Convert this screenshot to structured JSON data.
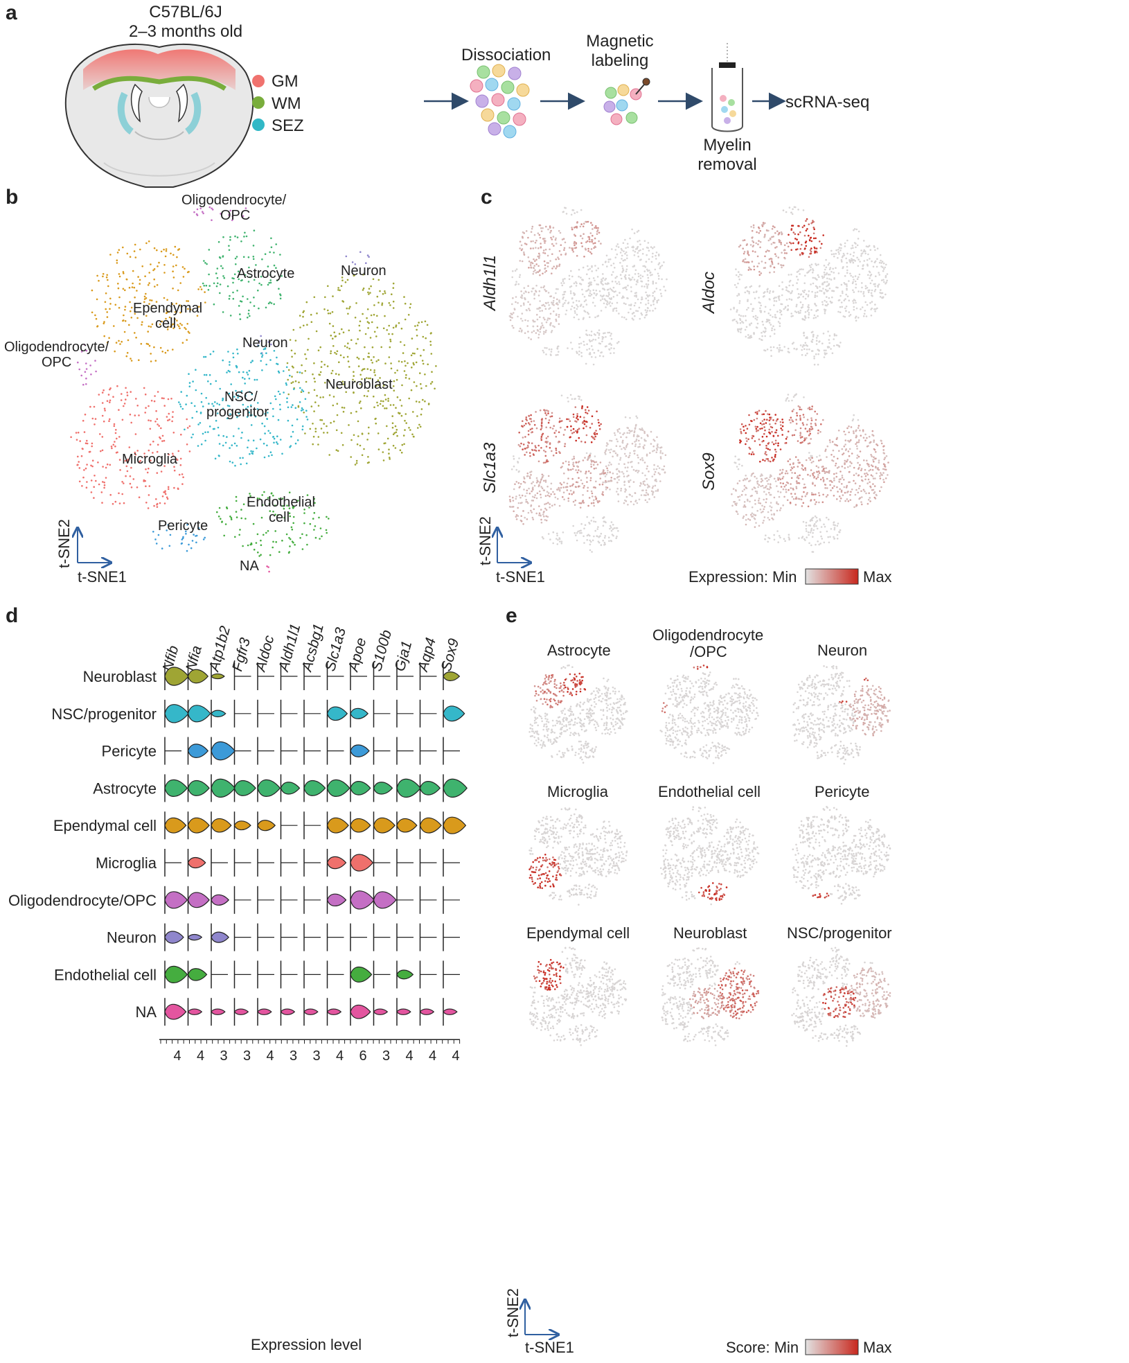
{
  "panel_labels": {
    "a": "a",
    "b": "b",
    "c": "c",
    "d": "d",
    "e": "e"
  },
  "panel_a": {
    "strain": "C57BL/6J",
    "age": "2–3 months old",
    "legend": [
      {
        "label": "GM",
        "color": "#f0726e"
      },
      {
        "label": "WM",
        "color": "#79ad3c"
      },
      {
        "label": "SEZ",
        "color": "#31b8c6"
      }
    ],
    "steps": {
      "dissociation": "Dissociation",
      "magnetic_1": "Magnetic",
      "magnetic_2": "labeling",
      "myelin_1": "Myelin",
      "myelin_2": "removal",
      "scrnaseq": "scRNA-seq"
    }
  },
  "panel_b": {
    "clusters": [
      {
        "label": "Oligodendrocyte/",
        "label2": "OPC",
        "color": "#c46fc4"
      },
      {
        "label": "Astrocyte",
        "color": "#3fb36e"
      },
      {
        "label": "Neuron",
        "color": "#8f86cc"
      },
      {
        "label": "Ependymal",
        "label2": "cell",
        "color": "#d99a1c"
      },
      {
        "label": "Oligodendrocyte/",
        "label2": "OPC",
        "color": "#c46fc4"
      },
      {
        "label": "Neuron",
        "color": "#8f86cc"
      },
      {
        "label": "Neuroblast",
        "color": "#9fa534"
      },
      {
        "label": "NSC/",
        "label2": "progenitor",
        "color": "#35b7c9"
      },
      {
        "label": "Microglia",
        "color": "#ef706c"
      },
      {
        "label": "Endothelial",
        "label2": "cell",
        "color": "#45ad3f"
      },
      {
        "label": "Pericyte",
        "color": "#3c9ad8"
      },
      {
        "label": "NA",
        "color": "#e3559f"
      }
    ],
    "axis_y": "t-SNE2",
    "axis_x": "t-SNE1"
  },
  "panel_c": {
    "genes": [
      "Aldh1l1",
      "Aldoc",
      "Slc1a3",
      "Sox9"
    ],
    "axis_y": "t-SNE2",
    "axis_x": "t-SNE1",
    "legend_prefix": "Expression: Min",
    "legend_max": "Max",
    "colors": {
      "min": "#d8d8d8",
      "max": "#c8281e"
    }
  },
  "panel_d": {
    "genes": [
      "Nfib",
      "Nfia",
      "Atp1b2",
      "Fgfr3",
      "Aldoc",
      "Aldh1l1",
      "Acsbg1",
      "Slc1a3",
      "Apoe",
      "S100b",
      "Gja1",
      "Aqp4",
      "Sox9"
    ],
    "cell_types": [
      {
        "name": "Neuroblast",
        "color": "#9fa534"
      },
      {
        "name": "NSC/progenitor",
        "color": "#35b7c9"
      },
      {
        "name": "Pericyte",
        "color": "#3c9ad8"
      },
      {
        "name": "Astrocyte",
        "color": "#3fb36e"
      },
      {
        "name": "Ependymal cell",
        "color": "#d99a1c"
      },
      {
        "name": "Microglia",
        "color": "#ef706c"
      },
      {
        "name": "Oligodendrocyte/OPC",
        "color": "#c46fc4"
      },
      {
        "name": "Neuron",
        "color": "#8f86cc"
      },
      {
        "name": "Endothelial cell",
        "color": "#45ad3f"
      },
      {
        "name": "NA",
        "color": "#e3559f"
      }
    ],
    "expression": [
      [
        0.9,
        0.6,
        0.05,
        0,
        0,
        0,
        0,
        0,
        0,
        0,
        0,
        0,
        0.3
      ],
      [
        0.9,
        0.8,
        0.15,
        0,
        0,
        0,
        0,
        0.6,
        0.4,
        0,
        0,
        0,
        0.7
      ],
      [
        0,
        0.6,
        0.9,
        0,
        0,
        0,
        0,
        0,
        0.5,
        0,
        0,
        0,
        0
      ],
      [
        0.8,
        0.7,
        0.9,
        0.7,
        0.8,
        0.5,
        0.7,
        0.8,
        0.6,
        0.5,
        0.9,
        0.6,
        0.9
      ],
      [
        0.7,
        0.7,
        0.6,
        0.3,
        0.4,
        0,
        0,
        0.7,
        0.6,
        0.7,
        0.6,
        0.7,
        0.8
      ],
      [
        0,
        0.4,
        0,
        0,
        0,
        0,
        0,
        0.5,
        0.8,
        0,
        0,
        0,
        0
      ],
      [
        0.8,
        0.7,
        0.4,
        0,
        0,
        0,
        0,
        0.5,
        0.9,
        0.8,
        0,
        0,
        0
      ],
      [
        0.5,
        0.1,
        0.4,
        0,
        0,
        0,
        0,
        0,
        0,
        0,
        0,
        0,
        0
      ],
      [
        0.8,
        0.5,
        0,
        0,
        0,
        0,
        0,
        0,
        0.7,
        0,
        0.3,
        0,
        0
      ],
      [
        0.7,
        0.1,
        0.1,
        0.1,
        0.1,
        0.1,
        0.1,
        0.1,
        0.6,
        0.1,
        0.1,
        0.1,
        0.1
      ]
    ],
    "tick_values": [
      "4",
      "4",
      "3",
      "3",
      "4",
      "3",
      "3",
      "4",
      "6",
      "3",
      "4",
      "4",
      "4"
    ],
    "xlabel": "Expression level"
  },
  "panel_e": {
    "rows": [
      [
        {
          "title": "Astrocyte"
        },
        {
          "title": "Oligodendrocyte",
          "title2": "/OPC"
        },
        {
          "title": "Neuron"
        }
      ],
      [
        {
          "title": "Microglia"
        },
        {
          "title": "Endothelial cell"
        },
        {
          "title": "Pericyte"
        }
      ],
      [
        {
          "title": "Ependymal cell"
        },
        {
          "title": "Neuroblast"
        },
        {
          "title": "NSC/progenitor"
        }
      ]
    ],
    "axis_y": "t-SNE2",
    "axis_x": "t-SNE1",
    "legend_prefix": "Score: Min",
    "legend_max": "Max"
  }
}
